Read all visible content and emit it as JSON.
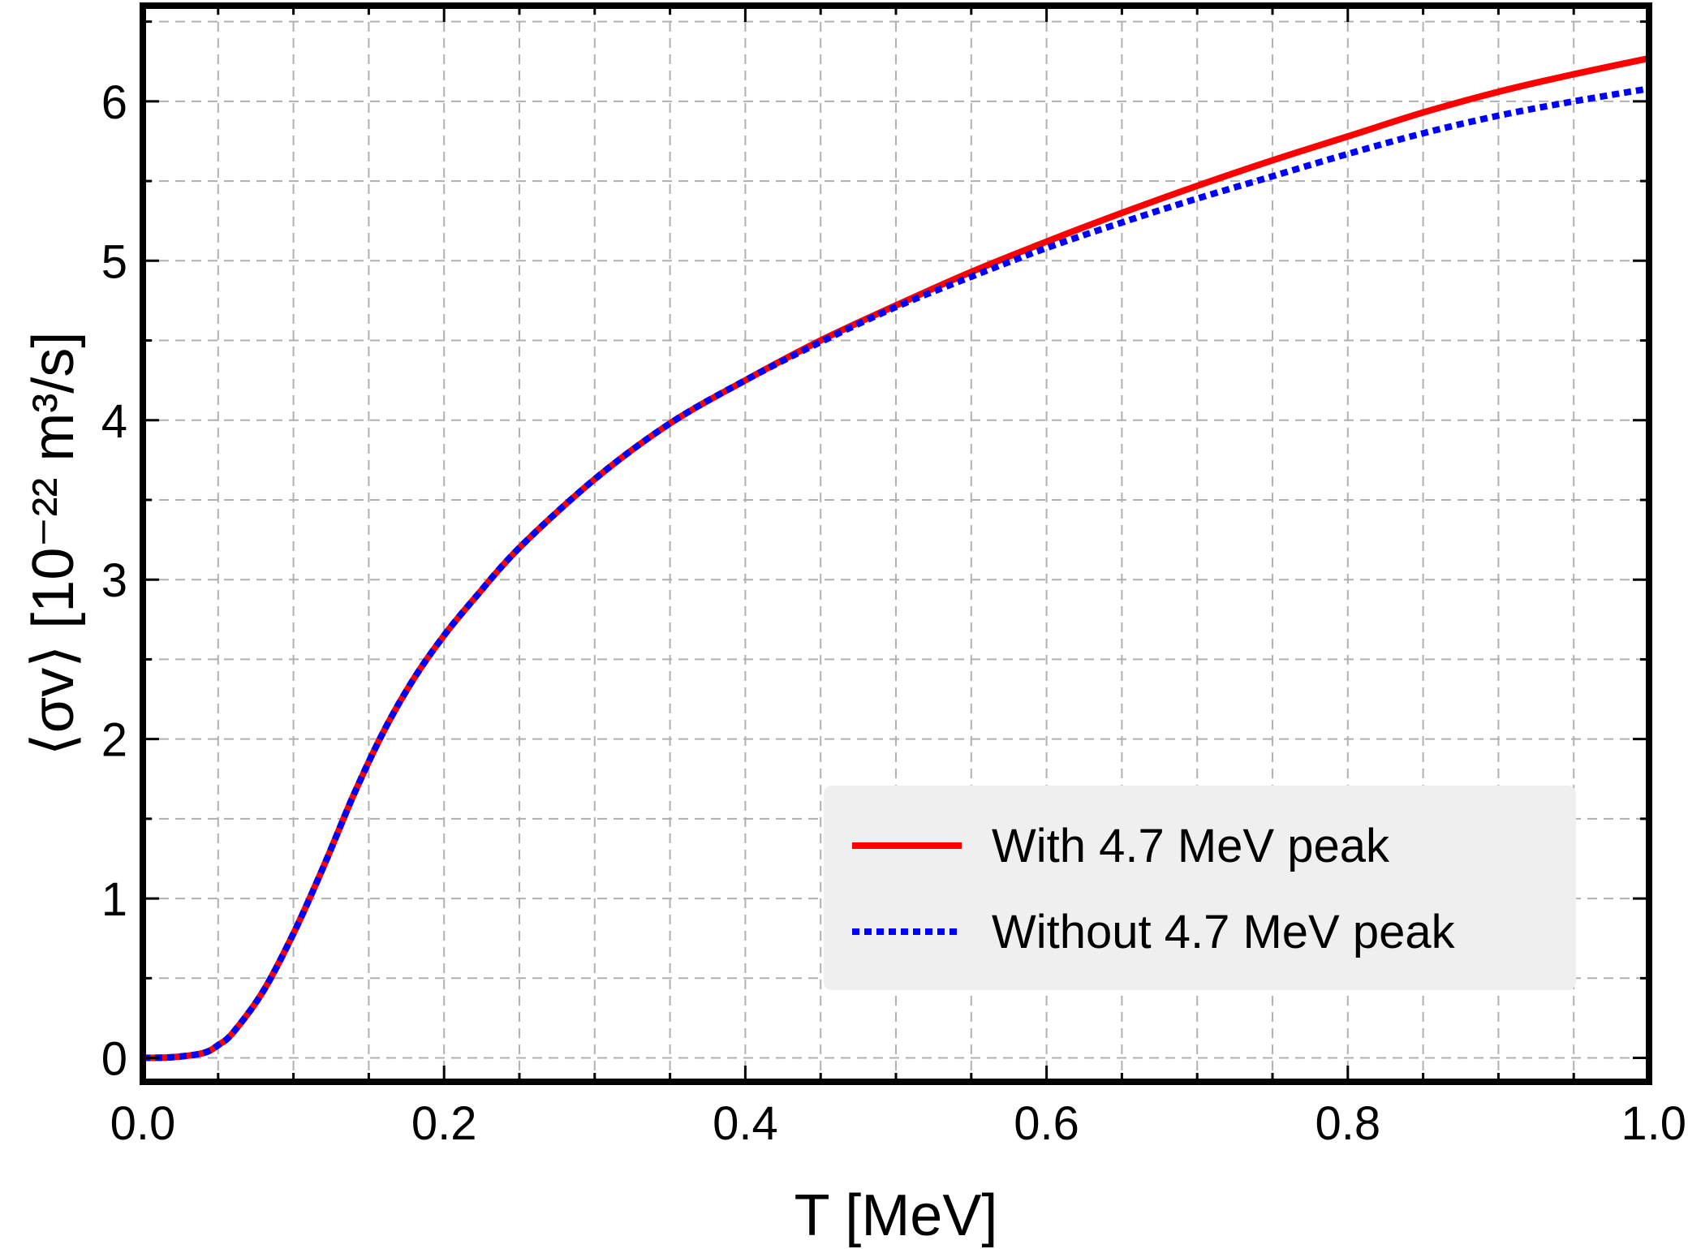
{
  "chart_data": {
    "type": "line",
    "title": "",
    "xlabel": "T [MeV]",
    "ylabel": "⟨σv⟩ [10⁻²² m³/s]",
    "xlim": [
      0.0,
      1.0
    ],
    "ylim": [
      -0.15,
      6.6
    ],
    "grid": true,
    "legend_position": "bottom-right",
    "x_ticks": [
      "0.0",
      "0.2",
      "0.4",
      "0.6",
      "0.8",
      "1.0"
    ],
    "y_ticks": [
      "0",
      "1",
      "2",
      "3",
      "4",
      "5",
      "6"
    ],
    "x": [
      0.0,
      0.02,
      0.04,
      0.05,
      0.06,
      0.08,
      0.1,
      0.12,
      0.14,
      0.16,
      0.18,
      0.2,
      0.22,
      0.25,
      0.3,
      0.35,
      0.4,
      0.45,
      0.5,
      0.55,
      0.6,
      0.65,
      0.7,
      0.75,
      0.8,
      0.85,
      0.9,
      0.95,
      1.0
    ],
    "series": [
      {
        "name": "With 4.7 MeV peak",
        "color": "#ff0000",
        "style": "solid",
        "values": [
          0.0,
          0.005,
          0.03,
          0.08,
          0.16,
          0.42,
          0.78,
          1.2,
          1.65,
          2.05,
          2.38,
          2.65,
          2.88,
          3.2,
          3.63,
          3.98,
          4.25,
          4.5,
          4.72,
          4.93,
          5.12,
          5.3,
          5.47,
          5.63,
          5.78,
          5.93,
          6.06,
          6.17,
          6.27
        ]
      },
      {
        "name": "Without 4.7 MeV peak",
        "color": "#0000ff",
        "style": "dotted",
        "values": [
          0.0,
          0.005,
          0.03,
          0.08,
          0.16,
          0.42,
          0.78,
          1.2,
          1.65,
          2.05,
          2.38,
          2.65,
          2.88,
          3.2,
          3.63,
          3.98,
          4.25,
          4.49,
          4.71,
          4.9,
          5.08,
          5.24,
          5.39,
          5.53,
          5.67,
          5.8,
          5.91,
          6.0,
          6.08
        ]
      }
    ]
  },
  "colors": {
    "legend_background": "#efefef",
    "grid": "#b0b0b0",
    "frame": "#000000"
  }
}
